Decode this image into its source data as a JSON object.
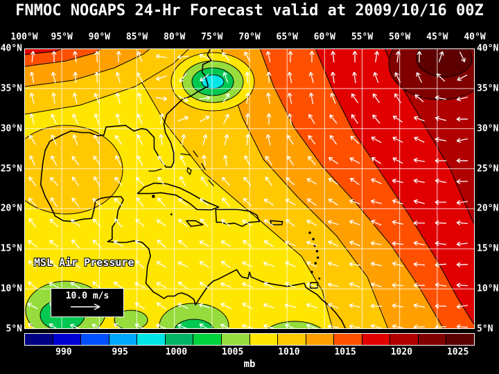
{
  "title": "FNMOC NOGAPS 24-Hr Forecast valid at 2009/10/16 00Z",
  "map_overlay": {
    "pressure_label": "MSL Air Pressure",
    "wind_legend_label": "10.0 m/s"
  },
  "chart_data": {
    "type": "heatmap",
    "subtype": "filled-contour-pressure-map-with-wind-vectors",
    "title": "FNMOC NOGAPS 24-Hr Forecast valid at 2009/10/16 00Z",
    "variable": "MSL Air Pressure",
    "units": "mb",
    "grid": true,
    "x_axis": {
      "name": "longitude",
      "ticks": [
        "100°W",
        "95°W",
        "90°W",
        "85°W",
        "80°W",
        "75°W",
        "70°W",
        "65°W",
        "60°W",
        "55°W",
        "50°W",
        "45°W",
        "40°W"
      ]
    },
    "y_axis": {
      "name": "latitude",
      "ticks": [
        "40°N",
        "35°N",
        "30°N",
        "25°N",
        "20°N",
        "15°N",
        "10°N",
        "5°N"
      ]
    },
    "colorbar": {
      "unit_label": "mb",
      "tick_values": [
        990,
        995,
        1000,
        1005,
        1010,
        1015,
        1020,
        1025
      ],
      "value_min": 986.5,
      "value_max": 1026.5,
      "segment_colors": [
        "#000082",
        "#0000d2",
        "#0050ff",
        "#00a8ff",
        "#00e6e6",
        "#00b464",
        "#00d23c",
        "#96dc3c",
        "#ffe600",
        "#ffc800",
        "#ffa000",
        "#ff5000",
        "#e00000",
        "#b00000",
        "#800000",
        "#5c0000"
      ]
    },
    "wind": {
      "reference_label": "10.0 m/s",
      "arrow_color": "#ffffff"
    },
    "pressure_features": [
      {
        "feature": "closed low with cyan core",
        "lon": -75,
        "lat": 36.5,
        "pressure_mb": 998
      },
      {
        "feature": "subtropical high center (dark red)",
        "lon": -43,
        "lat": 37,
        "pressure_mb": 1026
      },
      {
        "feature": "weak low (green)",
        "lon": -94.5,
        "lat": 7.5,
        "pressure_mb": 1005
      },
      {
        "feature": "weak low (green)",
        "lon": -78,
        "lat": 5,
        "pressure_mb": 1005
      },
      {
        "feature": "weak low (green)",
        "lon": -64,
        "lat": 4,
        "pressure_mb": 1005
      }
    ],
    "sample_field_mb": [
      {
        "lon": -95,
        "lat": 25,
        "mb": 1010
      },
      {
        "lon": -85,
        "lat": 25,
        "mb": 1009
      },
      {
        "lon": -75,
        "lat": 20,
        "mb": 1008
      },
      {
        "lon": -65,
        "lat": 20,
        "mb": 1011
      },
      {
        "lon": -55,
        "lat": 20,
        "mb": 1015
      },
      {
        "lon": -45,
        "lat": 20,
        "mb": 1018
      },
      {
        "lon": -70,
        "lat": 32,
        "mb": 1014
      },
      {
        "lon": -60,
        "lat": 30,
        "mb": 1018
      },
      {
        "lon": -50,
        "lat": 32,
        "mb": 1021
      },
      {
        "lon": -90,
        "lat": 35,
        "mb": 1013
      },
      {
        "lon": -98,
        "lat": 38,
        "mb": 1016
      },
      {
        "lon": -90,
        "lat": 10,
        "mb": 1007
      },
      {
        "lon": -70,
        "lat": 10,
        "mb": 1009
      },
      {
        "lon": -50,
        "lat": 8,
        "mb": 1013
      }
    ]
  }
}
